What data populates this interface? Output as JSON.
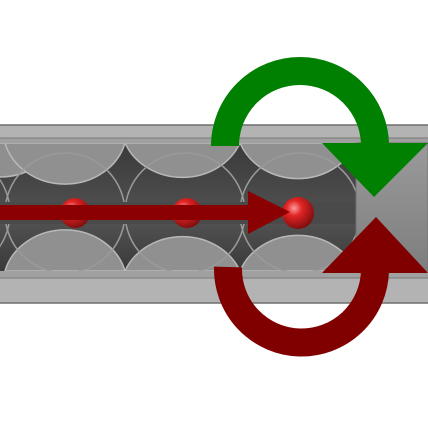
{
  "diagram": {
    "icon": "mechanism-icon",
    "colors": {
      "background": "#ffffff",
      "housing": "#b3b3b3",
      "housing_stroke": "#6e6e6e",
      "bore": "#454545",
      "end_cap": "#8c8c8c",
      "ball": "#d42020",
      "ball_highlight": "#ff8c8c",
      "linear_arrow": "#8b0000",
      "forward_rotation_arrow": "#008000",
      "reverse_rotation_arrow": "#800000"
    }
  }
}
